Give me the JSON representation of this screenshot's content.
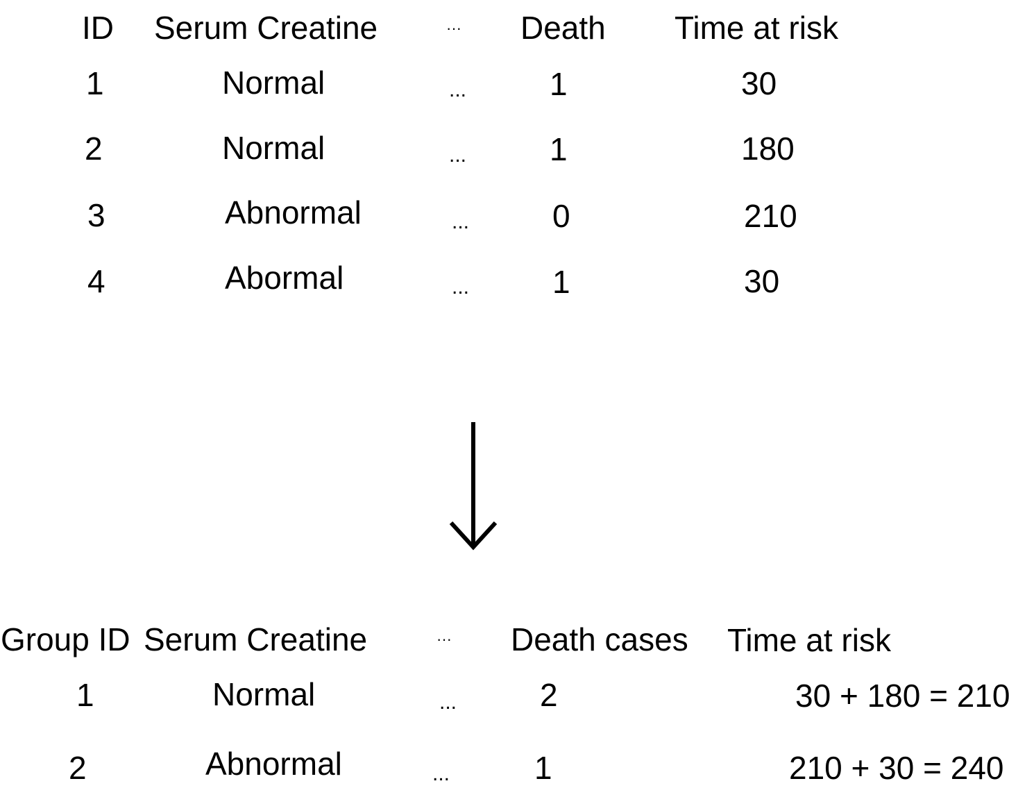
{
  "top_table": {
    "headers": {
      "id": "ID",
      "serum": "Serum Creatine",
      "ellipsis": "···",
      "death": "Death",
      "time": "Time at risk"
    },
    "rows": [
      {
        "id": "1",
        "serum": "Normal",
        "ellipsis": "...",
        "death": "1",
        "time": "30"
      },
      {
        "id": "2",
        "serum": "Normal",
        "ellipsis": "...",
        "death": "1",
        "time": "180"
      },
      {
        "id": "3",
        "serum": "Abnormal",
        "ellipsis": "...",
        "death": "0",
        "time": "210"
      },
      {
        "id": "4",
        "serum": "Abormal",
        "ellipsis": "...",
        "death": "1",
        "time": "30"
      }
    ]
  },
  "arrow": {
    "icon": "down-arrow-icon",
    "color": "#000000"
  },
  "bottom_table": {
    "headers": {
      "id": "Group ID",
      "serum": "Serum Creatine",
      "ellipsis": "···",
      "death": "Death cases",
      "time": "Time at risk"
    },
    "rows": [
      {
        "id": "1",
        "serum": "Normal",
        "ellipsis": "...",
        "death": "2",
        "time": "30 + 180 = 210"
      },
      {
        "id": "2",
        "serum": "Abnormal",
        "ellipsis": "...",
        "death": "1",
        "time": "210 + 30 = 240"
      }
    ]
  }
}
